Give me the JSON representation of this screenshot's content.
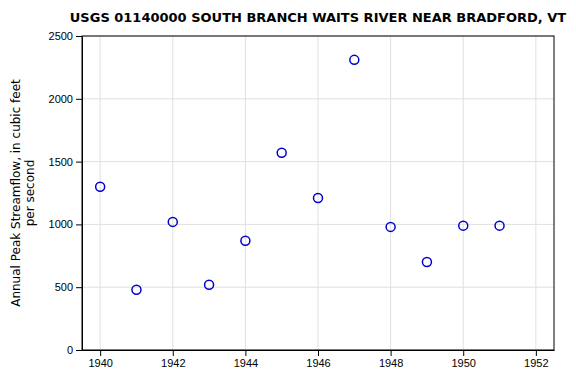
{
  "chart_data": {
    "type": "scatter",
    "title": "USGS 01140000 SOUTH BRANCH WAITS RIVER NEAR BRADFORD, VT",
    "ylabel": "Annual Peak Streamflow, in cubic feet\nper second",
    "x": [
      1940,
      1941,
      1942,
      1943,
      1944,
      1945,
      1946,
      1947,
      1948,
      1949,
      1950,
      1951
    ],
    "values": [
      1300,
      480,
      1020,
      520,
      870,
      1570,
      1210,
      2310,
      980,
      700,
      990,
      990
    ],
    "xlim": [
      1939.5,
      1952.5
    ],
    "ylim": [
      0,
      2500
    ],
    "xticks": [
      1940,
      1942,
      1944,
      1946,
      1948,
      1950,
      1952
    ],
    "yticks": [
      0,
      500,
      1000,
      1500,
      2000,
      2500
    ],
    "color": "#0000cc",
    "marker": "circle",
    "grid": true
  }
}
